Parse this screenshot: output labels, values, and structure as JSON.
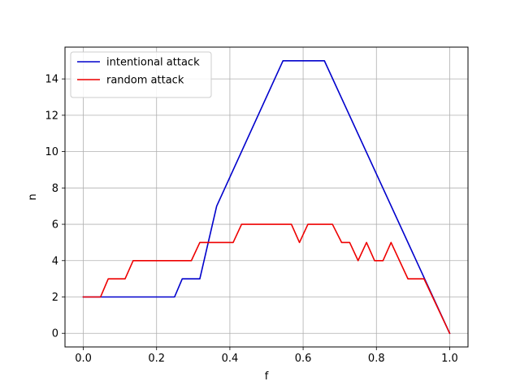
{
  "chart_data": {
    "type": "line",
    "title": "",
    "xlabel": "f",
    "ylabel": "n",
    "xlim": [
      -0.05,
      1.05
    ],
    "ylim": [
      -0.75,
      15.75
    ],
    "grid": true,
    "legend_position": "top-left",
    "xticks": [
      0.0,
      0.2,
      0.4,
      0.6,
      0.8,
      1.0
    ],
    "xtick_labels": [
      "0.0",
      "0.2",
      "0.4",
      "0.6",
      "0.8",
      "1.0"
    ],
    "yticks": [
      0,
      2,
      4,
      6,
      8,
      10,
      12,
      14
    ],
    "ytick_labels": [
      "0",
      "2",
      "4",
      "6",
      "8",
      "10",
      "12",
      "14"
    ],
    "series": [
      {
        "name": "intentional attack",
        "color": "#0000cc",
        "x": [
          0.0,
          0.249,
          0.27,
          0.318,
          0.364,
          0.545,
          0.658,
          1.0
        ],
        "y": [
          2,
          2,
          3,
          3,
          7,
          15,
          15,
          0
        ]
      },
      {
        "name": "random attack",
        "color": "#ee0000",
        "x": [
          0.0,
          0.047,
          0.068,
          0.114,
          0.136,
          0.295,
          0.318,
          0.409,
          0.432,
          0.568,
          0.59,
          0.613,
          0.68,
          0.705,
          0.727,
          0.75,
          0.773,
          0.795,
          0.818,
          0.84,
          0.886,
          0.93,
          1.0
        ],
        "y": [
          2,
          2,
          3,
          3,
          4,
          4,
          5,
          5,
          6,
          6,
          5,
          6,
          6,
          5,
          5,
          4,
          5,
          4,
          4,
          5,
          3,
          3,
          0
        ]
      }
    ]
  }
}
